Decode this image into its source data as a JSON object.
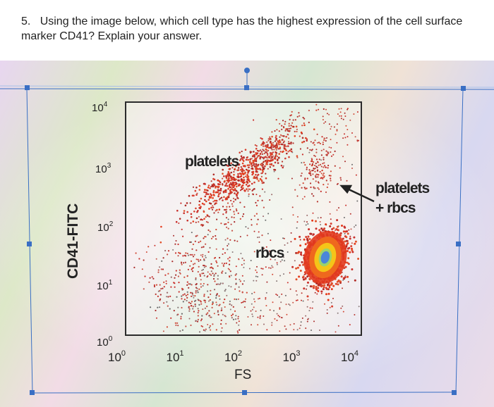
{
  "question": {
    "number": "5.",
    "text": "Using the image below, which cell type has the highest expression of the cell surface marker CD41? Explain your answer."
  },
  "chart_data": {
    "type": "scatter",
    "title": "",
    "xlabel": "FS",
    "ylabel": "CD41-FITC",
    "xscale": "log",
    "yscale": "log",
    "xlim": [
      1,
      10000
    ],
    "ylim": [
      1,
      10000
    ],
    "xticks": [
      {
        "base": "10",
        "exp": "0"
      },
      {
        "base": "10",
        "exp": "1"
      },
      {
        "base": "10",
        "exp": "2"
      },
      {
        "base": "10",
        "exp": "3"
      },
      {
        "base": "10",
        "exp": "4"
      }
    ],
    "yticks": [
      {
        "base": "10",
        "exp": "0"
      },
      {
        "base": "10",
        "exp": "1"
      },
      {
        "base": "10",
        "exp": "2"
      },
      {
        "base": "10",
        "exp": "3"
      },
      {
        "base": "10",
        "exp": "4"
      }
    ],
    "populations": [
      {
        "name": "platelets",
        "label": "platelets",
        "center": [
          100,
          700
        ],
        "density": "high"
      },
      {
        "name": "rbcs",
        "label": "rbcs",
        "center": [
          3000,
          15
        ],
        "density": "highest"
      },
      {
        "name": "platelets + rbcs",
        "label_line1": "platelets",
        "label_line2": "+ rbcs",
        "center": [
          3000,
          1000
        ],
        "density": "low"
      }
    ],
    "colors": {
      "sparse": "#c9302c",
      "dense": "#e53b1c",
      "core_outer": "#f5c518",
      "core_inner": "#4a86d8"
    }
  }
}
